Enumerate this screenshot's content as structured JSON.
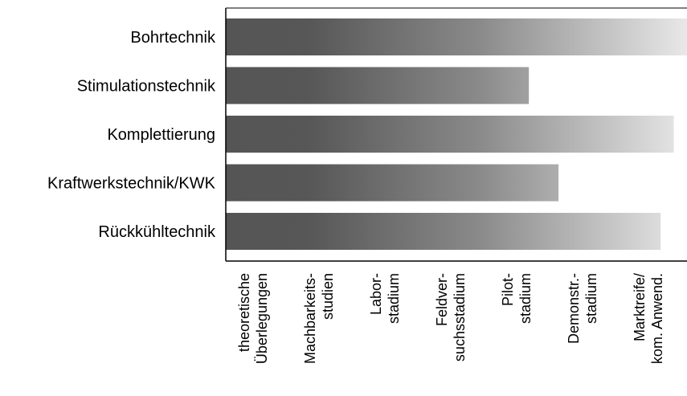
{
  "chart_data": {
    "type": "bar",
    "orientation": "horizontal",
    "categories": [
      "Bohrtechnik",
      "Stimulationstechnik",
      "Komplettierung",
      "Kraftwerkstechnik/KWK",
      "Rückkühltechnik"
    ],
    "stages": [
      [
        "theoretische",
        "Überlegungen"
      ],
      [
        "Machbarkeits-",
        "studien"
      ],
      [
        "Labor-",
        "stadium"
      ],
      [
        "Feldver-",
        "suchsstadium"
      ],
      [
        "Pilot-",
        "stadium"
      ],
      [
        "Demonstr.-",
        "stadium"
      ],
      [
        "Marktreife/",
        "kom. Anwend."
      ]
    ],
    "values": [
      7.0,
      4.6,
      6.8,
      5.05,
      6.6
    ],
    "xlim": [
      0,
      7
    ],
    "grid": false,
    "legend": "none",
    "fill_gradient": [
      "#555555",
      "#e8e8e8"
    ],
    "title": "",
    "xlabel": "",
    "ylabel": ""
  }
}
